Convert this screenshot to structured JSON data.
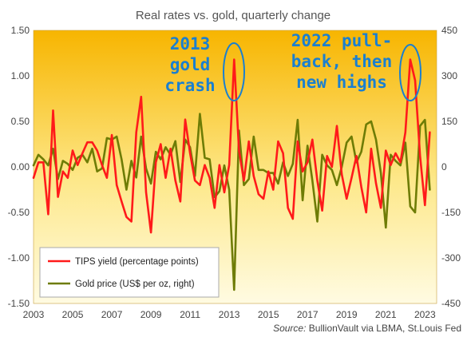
{
  "chart_data": {
    "type": "line",
    "title": "Real rates vs. gold, quarterly change",
    "source_label": "Source:",
    "source_text": "BullionVault via LBMA, St.Louis Fed",
    "xlim": [
      2003,
      2023.6
    ],
    "ylim": [
      -1.5,
      1.5
    ],
    "y2lim": [
      -450,
      450
    ],
    "x_ticks": [
      2003,
      2005,
      2007,
      2009,
      2011,
      2013,
      2015,
      2017,
      2019,
      2021,
      2023
    ],
    "y_ticks": [
      "1.50",
      "1.00",
      "0.50",
      "0.00",
      "-0.50",
      "-1.00",
      "-1.50"
    ],
    "y_tick_values": [
      1.5,
      1.0,
      0.5,
      0.0,
      -0.5,
      -1.0,
      -1.5
    ],
    "y2_ticks": [
      "450",
      "300",
      "150",
      "0",
      "-150",
      "-300",
      "-450"
    ],
    "y2_tick_values": [
      450,
      300,
      150,
      0,
      -150,
      -300,
      -450
    ],
    "grid": false,
    "legend_position": "bottom-left",
    "series": [
      {
        "name": "TIPS yield (percentage points)",
        "axis": "left",
        "color": "#ff1a1a",
        "x": [
          2003.0,
          2003.25,
          2003.5,
          2003.75,
          2004.0,
          2004.25,
          2004.5,
          2004.75,
          2005.0,
          2005.25,
          2005.5,
          2005.75,
          2006.0,
          2006.25,
          2006.5,
          2006.75,
          2007.0,
          2007.25,
          2007.5,
          2007.75,
          2008.0,
          2008.25,
          2008.5,
          2008.75,
          2009.0,
          2009.25,
          2009.5,
          2009.75,
          2010.0,
          2010.25,
          2010.5,
          2010.75,
          2011.0,
          2011.25,
          2011.5,
          2011.75,
          2012.0,
          2012.25,
          2012.5,
          2012.75,
          2013.0,
          2013.25,
          2013.5,
          2013.75,
          2014.0,
          2014.25,
          2014.5,
          2014.75,
          2015.0,
          2015.25,
          2015.5,
          2015.75,
          2016.0,
          2016.25,
          2016.5,
          2016.75,
          2017.0,
          2017.25,
          2017.5,
          2017.75,
          2018.0,
          2018.25,
          2018.5,
          2018.75,
          2019.0,
          2019.25,
          2019.5,
          2019.75,
          2020.0,
          2020.25,
          2020.5,
          2020.75,
          2021.0,
          2021.25,
          2021.5,
          2021.75,
          2022.0,
          2022.25,
          2022.5,
          2022.75,
          2023.0,
          2023.25
        ],
        "values": [
          -0.12,
          0.05,
          0.05,
          -0.52,
          0.62,
          -0.33,
          -0.05,
          -0.12,
          0.18,
          0.02,
          0.15,
          0.27,
          0.27,
          0.18,
          0.02,
          -0.12,
          0.35,
          -0.2,
          -0.38,
          -0.55,
          -0.6,
          0.38,
          0.77,
          -0.28,
          -0.72,
          0.05,
          0.25,
          -0.12,
          0.2,
          -0.15,
          -0.38,
          0.52,
          0.15,
          -0.15,
          -0.2,
          0.02,
          -0.12,
          -0.45,
          0.02,
          -0.28,
          0.02,
          1.18,
          0.18,
          -0.15,
          0.28,
          -0.1,
          -0.3,
          -0.35,
          -0.05,
          -0.25,
          0.28,
          0.15,
          -0.45,
          -0.57,
          0.28,
          -0.05,
          0.05,
          0.3,
          -0.15,
          -0.48,
          0.12,
          0.0,
          0.45,
          -0.08,
          -0.35,
          -0.12,
          0.12,
          -0.22,
          -0.5,
          0.2,
          -0.18,
          -0.45,
          0.18,
          0.02,
          0.15,
          0.05,
          0.38,
          1.18,
          0.95,
          0.12,
          -0.42,
          0.38
        ]
      },
      {
        "name": "Gold price (US$ per oz, right)",
        "axis": "right",
        "color": "#6e7c06",
        "x": [
          2003.0,
          2003.25,
          2003.5,
          2003.75,
          2004.0,
          2004.25,
          2004.5,
          2004.75,
          2005.0,
          2005.25,
          2005.5,
          2005.75,
          2006.0,
          2006.25,
          2006.5,
          2006.75,
          2007.0,
          2007.25,
          2007.5,
          2007.75,
          2008.0,
          2008.25,
          2008.5,
          2008.75,
          2009.0,
          2009.25,
          2009.5,
          2009.75,
          2010.0,
          2010.25,
          2010.5,
          2010.75,
          2011.0,
          2011.25,
          2011.5,
          2011.75,
          2012.0,
          2012.25,
          2012.5,
          2012.75,
          2013.0,
          2013.25,
          2013.5,
          2013.75,
          2014.0,
          2014.25,
          2014.5,
          2014.75,
          2015.0,
          2015.25,
          2015.5,
          2015.75,
          2016.0,
          2016.25,
          2016.5,
          2016.75,
          2017.0,
          2017.25,
          2017.5,
          2017.75,
          2018.0,
          2018.25,
          2018.5,
          2018.75,
          2019.0,
          2019.25,
          2019.5,
          2019.75,
          2020.0,
          2020.25,
          2020.5,
          2020.75,
          2021.0,
          2021.25,
          2021.5,
          2021.75,
          2022.0,
          2022.25,
          2022.5,
          2022.75,
          2023.0,
          2023.25
        ],
        "values": [
          5,
          40,
          25,
          5,
          60,
          -40,
          20,
          10,
          -10,
          30,
          40,
          15,
          60,
          -15,
          -5,
          95,
          90,
          100,
          25,
          -75,
          20,
          -35,
          100,
          -5,
          -55,
          50,
          25,
          65,
          40,
          85,
          -50,
          90,
          65,
          -30,
          175,
          30,
          25,
          -100,
          -80,
          5,
          -75,
          -405,
          120,
          -60,
          -40,
          100,
          -10,
          -10,
          -20,
          -20,
          -55,
          15,
          -30,
          10,
          155,
          -110,
          70,
          -45,
          -180,
          40,
          5,
          -10,
          -60,
          0,
          80,
          100,
          15,
          50,
          140,
          150,
          90,
          -20,
          -200,
          40,
          20,
          5,
          80,
          -130,
          -150,
          135,
          155,
          -75
        ]
      }
    ],
    "annotations": [
      {
        "lines": [
          "2013",
          "gold",
          "crash"
        ]
      },
      {
        "lines": [
          "2022 pull-",
          "back, then",
          "new highs"
        ]
      }
    ]
  }
}
